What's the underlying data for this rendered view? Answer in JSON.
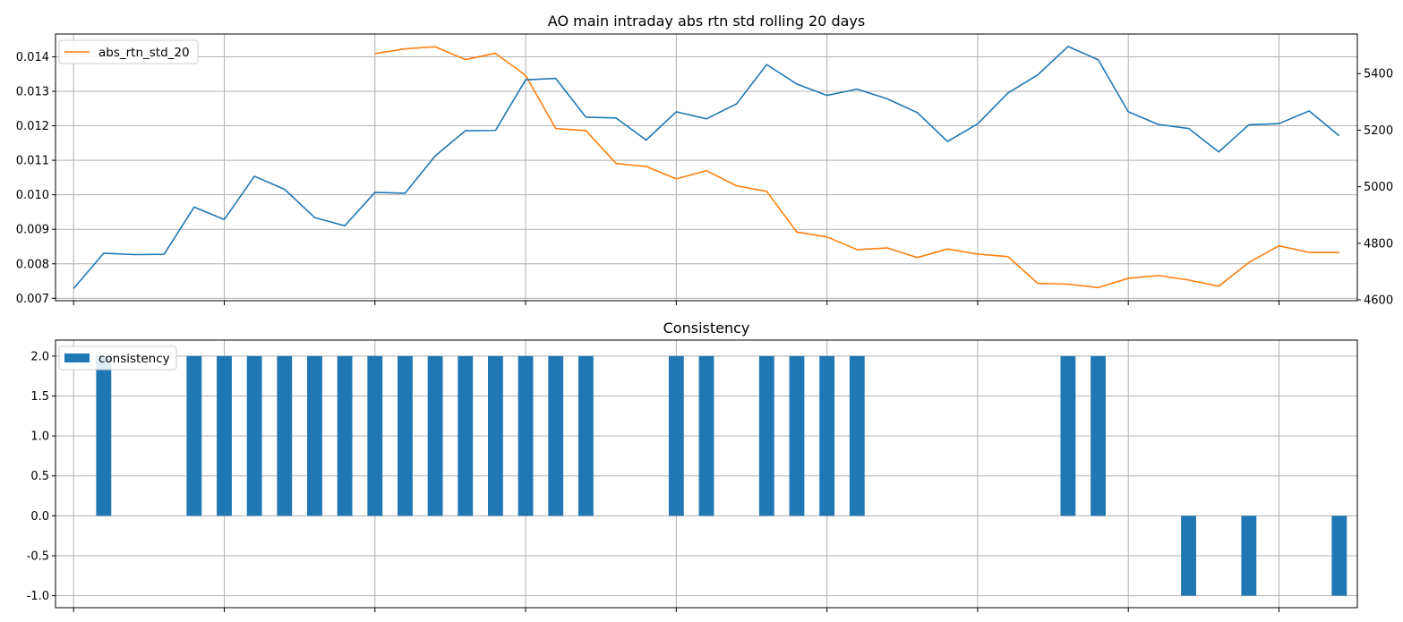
{
  "chart_data": [
    {
      "type": "line",
      "title": "AO main intraday abs rtn std rolling 20 days",
      "legend": {
        "placement": "top-left",
        "entries": [
          "abs_rtn_std_20"
        ]
      },
      "grid": true,
      "x": [
        0,
        1,
        2,
        3,
        4,
        5,
        6,
        7,
        8,
        9,
        10,
        11,
        12,
        13,
        14,
        15,
        16,
        17,
        18,
        19,
        20,
        21,
        22,
        23,
        24,
        25,
        26,
        27,
        28,
        29,
        30,
        31,
        32,
        33,
        34,
        35,
        36,
        37,
        38,
        39,
        40,
        41,
        42
      ],
      "xlim": [
        -0.6,
        42.6
      ],
      "x_tick_labels": [
        "",
        "",
        "",
        "",
        "",
        "",
        "",
        "",
        ""
      ],
      "series": [
        {
          "name": "abs_rtn_std_20",
          "axis": "left",
          "color": "#ff7f0e",
          "x": [
            10,
            11,
            12,
            13,
            14,
            15,
            16,
            17,
            18,
            19,
            20,
            21,
            22,
            23,
            24,
            25,
            26,
            27,
            28,
            29,
            30,
            31,
            32,
            33,
            34,
            35,
            36,
            37,
            38,
            39,
            40,
            41,
            42
          ],
          "values": [
            0.01409,
            0.01423,
            0.01429,
            0.01392,
            0.0141,
            0.01346,
            0.01192,
            0.01186,
            0.01091,
            0.01082,
            0.01046,
            0.0107,
            0.01026,
            0.0101,
            0.00892,
            0.00878,
            0.00841,
            0.00846,
            0.00818,
            0.00843,
            0.00828,
            0.00821,
            0.00743,
            0.00741,
            0.00731,
            0.00758,
            0.00766,
            0.00753,
            0.00735,
            0.00804,
            0.00852,
            0.00833,
            0.00833
          ]
        },
        {
          "axis": "right",
          "color": "#1f77b4",
          "x": [
            0,
            1,
            2,
            3,
            4,
            5,
            6,
            7,
            8,
            9,
            10,
            11,
            12,
            13,
            14,
            15,
            16,
            17,
            18,
            19,
            20,
            21,
            22,
            23,
            24,
            25,
            26,
            27,
            28,
            29,
            30,
            31,
            32,
            33,
            34,
            35,
            36,
            37,
            38,
            39,
            40,
            41,
            42
          ],
          "values": [
            4640,
            4765,
            4760,
            4761,
            4928,
            4884,
            5037,
            4991,
            4891,
            4862,
            4980,
            4977,
            5109,
            5198,
            5199,
            5378,
            5383,
            5246,
            5243,
            5165,
            5265,
            5240,
            5293,
            5432,
            5363,
            5323,
            5345,
            5311,
            5262,
            5160,
            5222,
            5331,
            5396,
            5496,
            5449,
            5265,
            5220,
            5206,
            5123,
            5219,
            5223,
            5268,
            5180
          ]
        }
      ],
      "ylim": [
        0.00693,
        0.01466
      ],
      "y_ticks": [
        "0.007",
        "0.008",
        "0.009",
        "0.010",
        "0.011",
        "0.012",
        "0.013",
        "0.014"
      ],
      "y2lim": [
        4597,
        5540
      ],
      "y2_ticks": [
        "4600",
        "4800",
        "5000",
        "5200",
        "5400"
      ]
    },
    {
      "type": "bar",
      "title": "Consistency",
      "legend": {
        "placement": "top-left",
        "entries": [
          "consistency"
        ]
      },
      "grid": true,
      "color": "#1f77b4",
      "x": [
        0,
        1,
        2,
        3,
        4,
        5,
        6,
        7,
        8,
        9,
        10,
        11,
        12,
        13,
        14,
        15,
        16,
        17,
        18,
        19,
        20,
        21,
        22,
        23,
        24,
        25,
        26,
        27,
        28,
        29,
        30,
        31,
        32,
        33,
        34,
        35,
        36,
        37,
        38,
        39,
        40,
        41,
        42
      ],
      "values": [
        0,
        2,
        0,
        0,
        2,
        2,
        2,
        2,
        2,
        2,
        2,
        2,
        2,
        2,
        2,
        2,
        2,
        2,
        0,
        0,
        2,
        2,
        0,
        2,
        2,
        2,
        2,
        0,
        0,
        0,
        0,
        0,
        0,
        2,
        2,
        0,
        0,
        -1,
        0,
        -1,
        0,
        0,
        -1
      ],
      "series_name": "consistency",
      "xlim": [
        -0.6,
        42.6
      ],
      "x_tick_labels": [
        "",
        "",
        "",
        "",
        "",
        "",
        "",
        "",
        ""
      ],
      "ylim": [
        -1.15,
        2.2
      ],
      "y_ticks": [
        "-1.0",
        "-0.5",
        "0.0",
        "0.5",
        "1.0",
        "1.5",
        "2.0"
      ]
    }
  ]
}
